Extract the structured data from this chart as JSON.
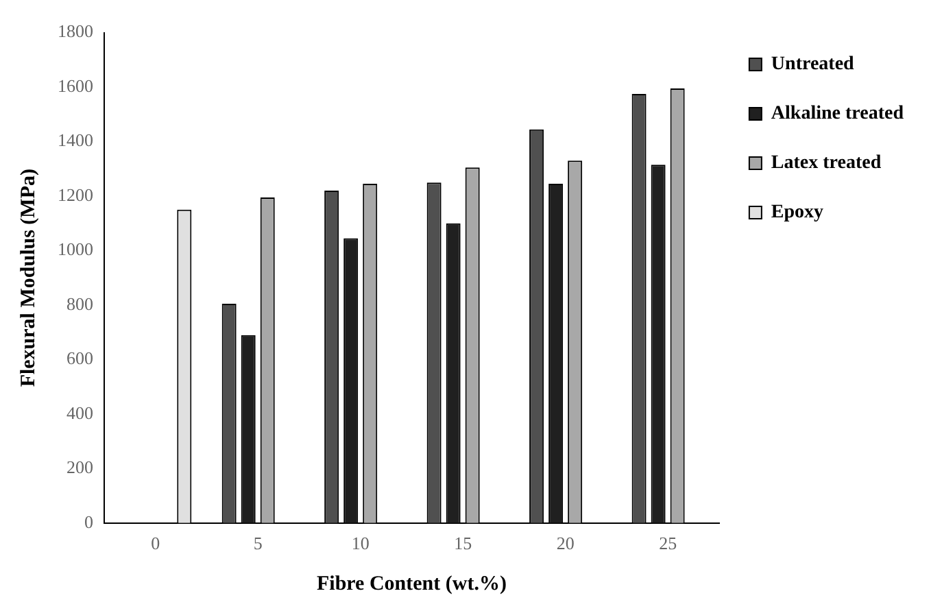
{
  "chart_data": {
    "type": "bar",
    "xlabel": "Fibre Content (wt.%)",
    "ylabel": "Flexural Modulus (MPa)",
    "categories": [
      "0",
      "5",
      "10",
      "15",
      "20",
      "25"
    ],
    "series": [
      {
        "name": "Untreated",
        "color": "#505050",
        "values": [
          null,
          805,
          1220,
          1250,
          1445,
          1575
        ]
      },
      {
        "name": "Alkaline treated",
        "color": "#202020",
        "values": [
          null,
          690,
          1045,
          1100,
          1245,
          1315
        ]
      },
      {
        "name": "Latex treated",
        "color": "#a8a8a8",
        "values": [
          null,
          1195,
          1245,
          1305,
          1330,
          1595
        ]
      },
      {
        "name": "Epoxy",
        "color": "#e0e0e0",
        "values": [
          1150,
          null,
          null,
          null,
          null,
          null
        ]
      }
    ],
    "ylim": [
      0,
      1800
    ],
    "yticks": [
      0,
      200,
      400,
      600,
      800,
      1000,
      1200,
      1400,
      1600,
      1800
    ],
    "grid": false,
    "legend": "right"
  }
}
